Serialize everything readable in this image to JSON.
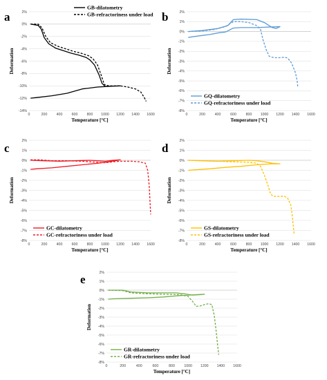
{
  "chart_data": [
    {
      "panel_label": "a",
      "type": "line",
      "xlabel": "Temperature [°C]",
      "ylabel": "Deformation",
      "xlim": [
        0,
        1600
      ],
      "ylim": [
        -14,
        2
      ],
      "xticks": [
        "0",
        "200",
        "400",
        "600",
        "800",
        "1000",
        "1200",
        "1400",
        "1600"
      ],
      "yticks": [
        "2%",
        "0%",
        "-2%",
        "-4%",
        "-6%",
        "-8%",
        "-10%",
        "-12%",
        "-14%"
      ],
      "color": "#000000",
      "legend_position": "top-right",
      "series": [
        {
          "name": "GB-dilatometry",
          "style": "solid",
          "points": [
            [
              20,
              0
            ],
            [
              120,
              -0.2
            ],
            [
              160,
              -0.8
            ],
            [
              200,
              -2.2
            ],
            [
              260,
              -3.2
            ],
            [
              350,
              -3.9
            ],
            [
              450,
              -4.3
            ],
            [
              550,
              -4.7
            ],
            [
              650,
              -5.0
            ],
            [
              750,
              -5.4
            ],
            [
              800,
              -5.8
            ],
            [
              860,
              -6.6
            ],
            [
              920,
              -8.2
            ],
            [
              960,
              -9.6
            ],
            [
              1000,
              -10.1
            ],
            [
              1100,
              -10.05
            ],
            [
              1200,
              -10.0
            ],
            [
              1100,
              -10.05
            ],
            [
              900,
              -10.2
            ],
            [
              700,
              -10.5
            ],
            [
              500,
              -11.2
            ],
            [
              300,
              -11.6
            ],
            [
              100,
              -11.9
            ],
            [
              20,
              -12.0
            ]
          ]
        },
        {
          "name": "GB-refractoriness under load",
          "style": "dashed",
          "points": [
            [
              20,
              0
            ],
            [
              120,
              0
            ],
            [
              170,
              -0.6
            ],
            [
              220,
              -2.0
            ],
            [
              280,
              -3.0
            ],
            [
              380,
              -3.6
            ],
            [
              480,
              -4.0
            ],
            [
              580,
              -4.4
            ],
            [
              680,
              -4.7
            ],
            [
              780,
              -5.1
            ],
            [
              840,
              -5.6
            ],
            [
              900,
              -6.6
            ],
            [
              950,
              -8.3
            ],
            [
              990,
              -9.8
            ],
            [
              1050,
              -10.0
            ],
            [
              1200,
              -10.0
            ],
            [
              1300,
              -10.2
            ],
            [
              1400,
              -10.5
            ],
            [
              1470,
              -11.0
            ],
            [
              1520,
              -12.0
            ],
            [
              1540,
              -12.5
            ]
          ]
        }
      ]
    },
    {
      "panel_label": "b",
      "type": "line",
      "xlabel": "Temperature [°C]",
      "ylabel": "Deformation",
      "xlim": [
        0,
        1600
      ],
      "ylim": [
        -8,
        2
      ],
      "xticks": [
        "0",
        "200",
        "400",
        "600",
        "800",
        "1000",
        "1200",
        "1400",
        "1600"
      ],
      "yticks": [
        "2%",
        "1%",
        "0%",
        "-1%",
        "-2%",
        "-3%",
        "-4%",
        "-5%",
        "-6%",
        "-7%",
        "-8%"
      ],
      "color": "#5b9bd5",
      "legend_position": "bottom-left",
      "series": [
        {
          "name": "GQ-dilatometry",
          "style": "solid",
          "points": [
            [
              20,
              0
            ],
            [
              200,
              0.1
            ],
            [
              400,
              0.3
            ],
            [
              530,
              0.6
            ],
            [
              600,
              1.2
            ],
            [
              700,
              1.25
            ],
            [
              900,
              1.2
            ],
            [
              1000,
              0.9
            ],
            [
              1100,
              0.4
            ],
            [
              1150,
              0.3
            ],
            [
              1200,
              0.5
            ],
            [
              1050,
              0.45
            ],
            [
              900,
              0.4
            ],
            [
              700,
              0.4
            ],
            [
              600,
              0.35
            ],
            [
              500,
              -0.05
            ],
            [
              400,
              -0.15
            ],
            [
              300,
              -0.3
            ],
            [
              200,
              -0.4
            ],
            [
              100,
              -0.5
            ],
            [
              20,
              -0.6
            ]
          ]
        },
        {
          "name": "GQ-refractoriness under load",
          "style": "dashed",
          "points": [
            [
              20,
              0
            ],
            [
              200,
              0.05
            ],
            [
              350,
              0.2
            ],
            [
              500,
              0.5
            ],
            [
              600,
              1.0
            ],
            [
              700,
              1.0
            ],
            [
              800,
              0.9
            ],
            [
              900,
              0.6
            ],
            [
              950,
              0.2
            ],
            [
              980,
              -0.8
            ],
            [
              1020,
              -1.8
            ],
            [
              1060,
              -2.5
            ],
            [
              1120,
              -2.65
            ],
            [
              1200,
              -2.65
            ],
            [
              1260,
              -2.6
            ],
            [
              1300,
              -2.7
            ],
            [
              1350,
              -3.2
            ],
            [
              1400,
              -4.2
            ],
            [
              1420,
              -5.0
            ],
            [
              1430,
              -5.7
            ]
          ]
        }
      ]
    },
    {
      "panel_label": "c",
      "type": "line",
      "xlabel": "Temperature [°C]",
      "ylabel": "Deformation",
      "xlim": [
        0,
        1600
      ],
      "ylim": [
        -8,
        2
      ],
      "xticks": [
        "0",
        "200",
        "400",
        "600",
        "800",
        "1000",
        "1200",
        "1400",
        "1600"
      ],
      "yticks": [
        "2%",
        "1%",
        "0%",
        "-1%",
        "-2%",
        "-3%",
        "-4%",
        "-5%",
        "-6%",
        "-7%",
        "-8%"
      ],
      "color": "#ee1c25",
      "legend_position": "bottom-left",
      "series": [
        {
          "name": "GC-dilatometry",
          "style": "solid",
          "points": [
            [
              20,
              0
            ],
            [
              200,
              -0.05
            ],
            [
              400,
              -0.1
            ],
            [
              600,
              -0.05
            ],
            [
              800,
              0
            ],
            [
              900,
              -0.05
            ],
            [
              1000,
              -0.1
            ],
            [
              1100,
              0
            ],
            [
              1200,
              0.05
            ],
            [
              1050,
              -0.15
            ],
            [
              900,
              -0.3
            ],
            [
              700,
              -0.45
            ],
            [
              500,
              -0.6
            ],
            [
              300,
              -0.75
            ],
            [
              100,
              -0.85
            ],
            [
              20,
              -0.9
            ]
          ]
        },
        {
          "name": "GC-refractoriness under load",
          "style": "dashed",
          "points": [
            [
              20,
              0.05
            ],
            [
              150,
              0.05
            ],
            [
              300,
              -0.05
            ],
            [
              500,
              -0.05
            ],
            [
              700,
              -0.1
            ],
            [
              900,
              -0.2
            ],
            [
              1000,
              -0.25
            ],
            [
              1100,
              -0.15
            ],
            [
              1200,
              -0.1
            ],
            [
              1350,
              -0.1
            ],
            [
              1450,
              -0.15
            ],
            [
              1530,
              -0.3
            ],
            [
              1560,
              -1.0
            ],
            [
              1580,
              -2.5
            ],
            [
              1590,
              -4.0
            ],
            [
              1600,
              -5.4
            ]
          ]
        }
      ]
    },
    {
      "panel_label": "d",
      "type": "line",
      "xlabel": "Temperature [°C]",
      "ylabel": "Deformation",
      "xlim": [
        0,
        1600
      ],
      "ylim": [
        -8,
        2
      ],
      "xticks": [
        "0",
        "200",
        "400",
        "600",
        "800",
        "1000",
        "1200",
        "1400",
        "1600"
      ],
      "yticks": [
        "2%",
        "1%",
        "0%",
        "-1%",
        "-2%",
        "-3%",
        "-4%",
        "-5%",
        "-6%",
        "-7%",
        "-8%"
      ],
      "color": "#ffc000",
      "legend_position": "bottom-left",
      "series": [
        {
          "name": "GS-dilatometry",
          "style": "solid",
          "points": [
            [
              20,
              0
            ],
            [
              200,
              -0.05
            ],
            [
              400,
              -0.1
            ],
            [
              600,
              -0.05
            ],
            [
              800,
              0
            ],
            [
              900,
              -0.05
            ],
            [
              1000,
              -0.15
            ],
            [
              1100,
              -0.3
            ],
            [
              1200,
              -0.35
            ],
            [
              1100,
              -0.35
            ],
            [
              900,
              -0.45
            ],
            [
              700,
              -0.6
            ],
            [
              500,
              -0.7
            ],
            [
              300,
              -0.85
            ],
            [
              100,
              -0.95
            ],
            [
              20,
              -1.0
            ]
          ]
        },
        {
          "name": "GS-refractoriness under load",
          "style": "dashed",
          "points": [
            [
              20,
              0
            ],
            [
              200,
              -0.05
            ],
            [
              400,
              -0.1
            ],
            [
              600,
              -0.15
            ],
            [
              800,
              -0.2
            ],
            [
              900,
              -0.3
            ],
            [
              950,
              -0.6
            ],
            [
              1000,
              -1.5
            ],
            [
              1050,
              -2.6
            ],
            [
              1080,
              -3.4
            ],
            [
              1120,
              -3.6
            ],
            [
              1200,
              -3.6
            ],
            [
              1260,
              -3.6
            ],
            [
              1300,
              -3.8
            ],
            [
              1340,
              -4.5
            ],
            [
              1360,
              -5.7
            ],
            [
              1380,
              -7.3
            ]
          ]
        }
      ]
    },
    {
      "panel_label": "e",
      "type": "line",
      "xlabel": "Temperature [°C]",
      "ylabel": "Deformation",
      "xlim": [
        0,
        1600
      ],
      "ylim": [
        -8,
        2
      ],
      "xticks": [
        "0",
        "200",
        "400",
        "600",
        "800",
        "1000",
        "1200",
        "1400",
        "1600"
      ],
      "yticks": [
        "2%",
        "1%",
        "0%",
        "-1%",
        "-2%",
        "-3%",
        "-4%",
        "-5%",
        "-6%",
        "-7%",
        "-8%"
      ],
      "color": "#70ad47",
      "legend_position": "bottom-left",
      "series": [
        {
          "name": "GR-dilatometry",
          "style": "solid",
          "points": [
            [
              20,
              0
            ],
            [
              200,
              0
            ],
            [
              300,
              -0.2
            ],
            [
              500,
              -0.3
            ],
            [
              700,
              -0.3
            ],
            [
              850,
              -0.3
            ],
            [
              950,
              -0.4
            ],
            [
              1050,
              -0.55
            ],
            [
              1150,
              -0.5
            ],
            [
              1200,
              -0.45
            ],
            [
              1100,
              -0.5
            ],
            [
              900,
              -0.6
            ],
            [
              700,
              -0.75
            ],
            [
              500,
              -0.85
            ],
            [
              300,
              -0.9
            ],
            [
              100,
              -0.95
            ],
            [
              20,
              -1.0
            ]
          ]
        },
        {
          "name": "GR-refractoriness under load",
          "style": "dashed",
          "points": [
            [
              20,
              0
            ],
            [
              200,
              -0.05
            ],
            [
              300,
              -0.3
            ],
            [
              500,
              -0.4
            ],
            [
              700,
              -0.45
            ],
            [
              900,
              -0.5
            ],
            [
              1000,
              -0.7
            ],
            [
              1050,
              -1.2
            ],
            [
              1100,
              -1.8
            ],
            [
              1150,
              -1.75
            ],
            [
              1200,
              -1.6
            ],
            [
              1250,
              -1.5
            ],
            [
              1290,
              -1.6
            ],
            [
              1320,
              -2.8
            ],
            [
              1340,
              -4.3
            ],
            [
              1360,
              -6.0
            ],
            [
              1375,
              -7.2
            ]
          ]
        }
      ]
    }
  ]
}
